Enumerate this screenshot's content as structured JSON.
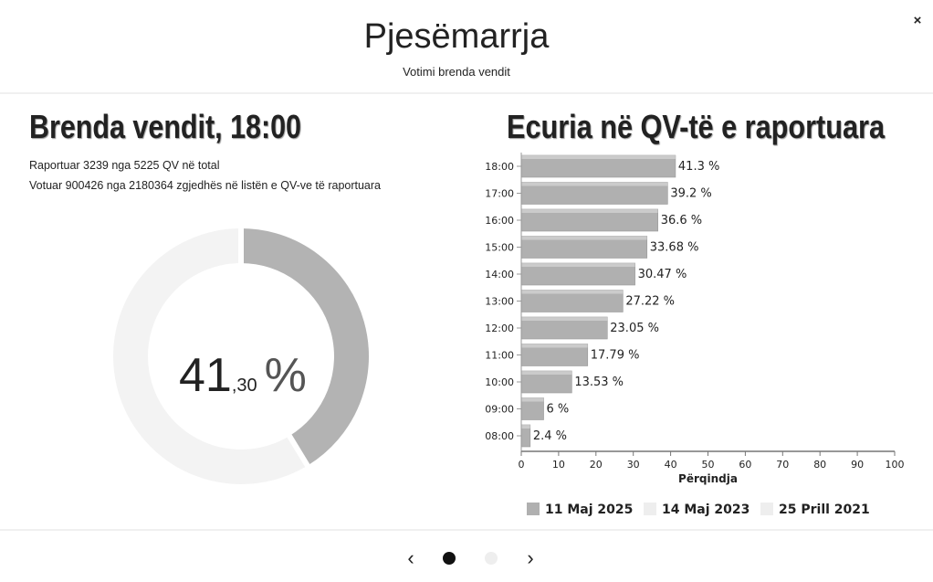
{
  "header": {
    "title": "Pjesëmarrja",
    "subtitle": "Votimi brenda vendit",
    "close": "×"
  },
  "summary": {
    "title": "Brenda vendit, 18:00",
    "lines": [
      "Raportuar 3239 nga 5225 QV në total",
      "Votuar 900426 nga 2180364 zgjedhës në listën e QV-ve të raportuara"
    ],
    "donut": {
      "value": 41.3,
      "color": "#b3b3b3",
      "track_color": "#f3f3f3",
      "integer_label": "41",
      "decimal_label": ",30",
      "unit_label": "%"
    }
  },
  "chart_data": {
    "type": "hbar",
    "title": "Ecuria në QV-të e raportuara",
    "categories": [
      "18:00",
      "17:00",
      "16:00",
      "15:00",
      "14:00",
      "13:00",
      "12:00",
      "11:00",
      "10:00",
      "09:00",
      "08:00"
    ],
    "series": [
      {
        "name": "11 Maj 2025",
        "color": "#b0b0b0",
        "values": [
          41.3,
          39.2,
          36.6,
          33.68,
          30.47,
          27.22,
          23.05,
          17.79,
          13.53,
          6,
          2.4
        ],
        "value_labels": [
          "41.3 %",
          "39.2 %",
          "36.6 %",
          "33.68 %",
          "30.47 %",
          "27.22 %",
          "23.05 %",
          "17.79 %",
          "13.53 %",
          "6 %",
          "2.4 %"
        ]
      }
    ],
    "hidden_series": [
      {
        "name": "14 Maj 2023",
        "color": "#eeeeee"
      },
      {
        "name": "25 Prill 2021",
        "color": "#eeeeee"
      }
    ],
    "xlabel": "Përqindja",
    "xlim": [
      0,
      100
    ],
    "xticks": [
      0,
      10,
      20,
      30,
      40,
      50,
      60,
      70,
      80,
      90,
      100
    ]
  },
  "nav": {
    "prev": "‹",
    "next": "›"
  }
}
